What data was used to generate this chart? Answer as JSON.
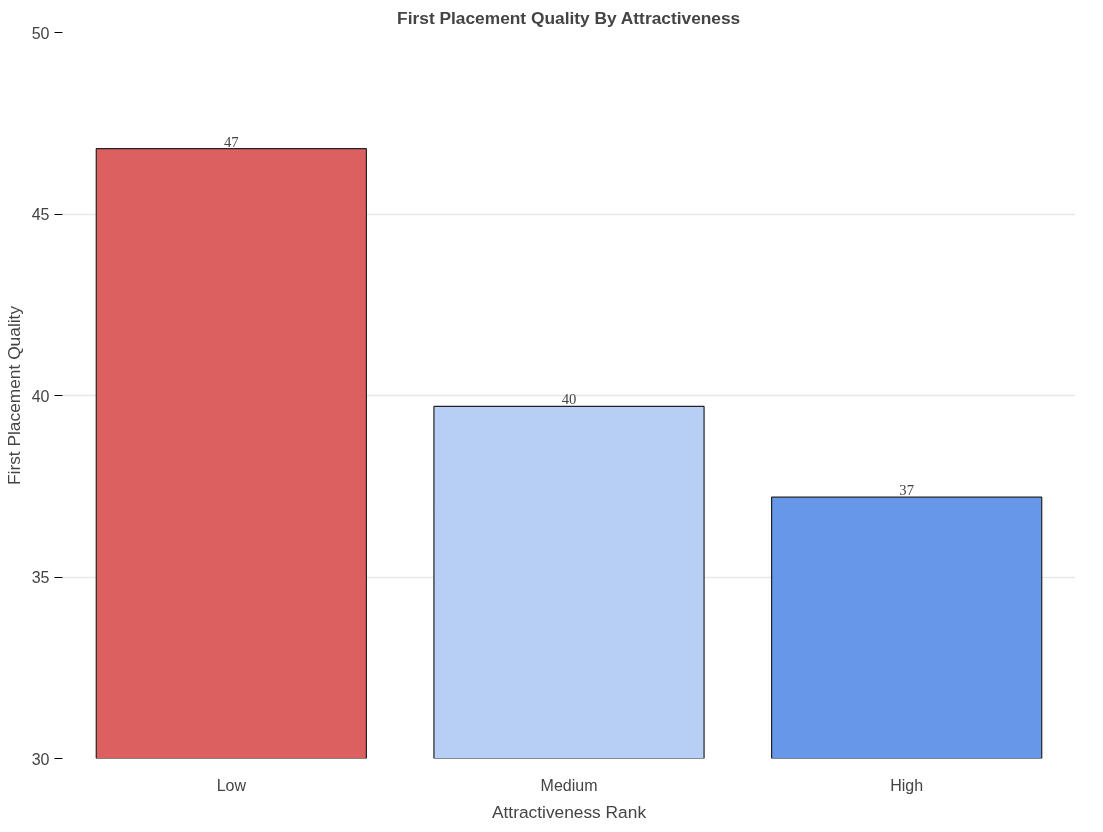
{
  "chart_data": {
    "type": "bar",
    "title": "First Placement Quality By Attractiveness",
    "xlabel": "Attractiveness Rank",
    "ylabel": "First Placement Quality",
    "categories": [
      "Low",
      "Medium",
      "High"
    ],
    "values": [
      46.8,
      39.7,
      37.2
    ],
    "colors": [
      "#dd6060",
      "#b8cff5",
      "#6697e8"
    ],
    "value_labels": [
      "47",
      "40",
      "37"
    ],
    "ylim": [
      30,
      50
    ],
    "yticks": [
      30,
      35,
      40,
      45,
      50
    ],
    "grid": "y"
  }
}
